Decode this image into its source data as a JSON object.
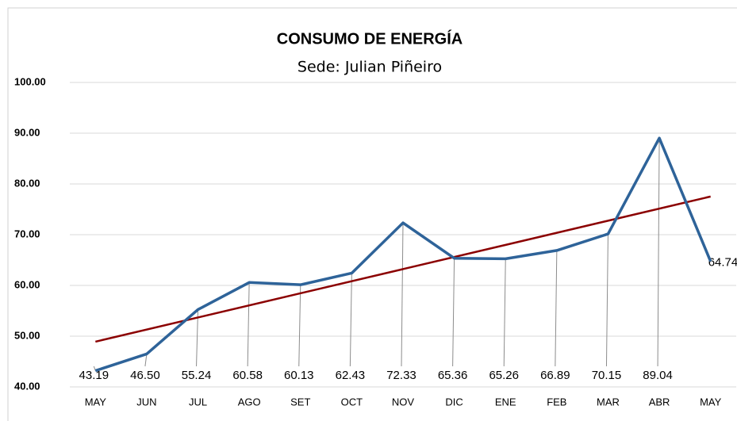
{
  "chart_data": {
    "type": "line",
    "title": "CONSUMO DE ENERGÍA",
    "subtitle": "Sede: Julian Piñeiro",
    "categories": [
      "MAY",
      "JUN",
      "JUL",
      "AGO",
      "SET",
      "OCT",
      "NOV",
      "DIC",
      "ENE",
      "FEB",
      "MAR",
      "ABR",
      "MAY"
    ],
    "series": [
      {
        "color": "#2e6399",
        "values": [
          43.19,
          46.5,
          55.24,
          60.58,
          60.13,
          62.43,
          72.33,
          65.36,
          65.26,
          66.89,
          70.15,
          89.04,
          64.74
        ],
        "value_labels": [
          "43.19",
          "46.50",
          "55.24",
          "60.58",
          "60.13",
          "62.43",
          "72.33",
          "65.36",
          "65.26",
          "66.89",
          "70.15",
          "89.04",
          "64.74"
        ]
      }
    ],
    "trendline": {
      "type": "linear",
      "color": "#8b0000"
    },
    "ylim": [
      40,
      100
    ],
    "yticks": [
      {
        "value": 40,
        "label": "40.00"
      },
      {
        "value": 50,
        "label": "50.00"
      },
      {
        "value": 60,
        "label": "60.00"
      },
      {
        "value": 70,
        "label": "70.00"
      },
      {
        "value": 80,
        "label": "80.00"
      },
      {
        "value": 90,
        "label": "90.00"
      },
      {
        "value": 100,
        "label": "100.00"
      }
    ],
    "grid": true
  }
}
